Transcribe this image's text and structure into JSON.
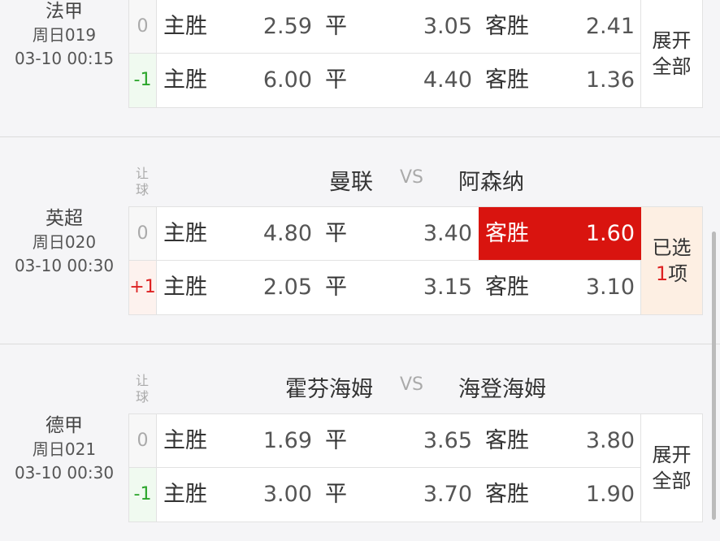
{
  "labels": {
    "rangqiu_1": "让",
    "rangqiu_2": "球",
    "vs": "VS",
    "home_win": "主胜",
    "draw": "平",
    "away_win": "客胜"
  },
  "matches": [
    {
      "league": "法甲",
      "number": "周日019",
      "time": "03-10 00:15",
      "home": "",
      "away": "",
      "rows": [
        {
          "handicap": "0",
          "home": "2.59",
          "draw": "3.05",
          "away": "2.41"
        },
        {
          "handicap": "-1",
          "home": "6.00",
          "draw": "4.40",
          "away": "1.36"
        }
      ],
      "option": {
        "line1": "展开",
        "line2": "全部"
      }
    },
    {
      "league": "英超",
      "number": "周日020",
      "time": "03-10 00:30",
      "home": "曼联",
      "away": "阿森纳",
      "rows": [
        {
          "handicap": "0",
          "home": "4.80",
          "draw": "3.40",
          "away": "1.60",
          "selected": "away"
        },
        {
          "handicap": "+1",
          "home": "2.05",
          "draw": "3.15",
          "away": "3.10"
        }
      ],
      "option": {
        "pre": "已选",
        "count": "1",
        "post": "项"
      }
    },
    {
      "league": "德甲",
      "number": "周日021",
      "time": "03-10 00:30",
      "home": "霍芬海姆",
      "away": "海登海姆",
      "rows": [
        {
          "handicap": "0",
          "home": "1.69",
          "draw": "3.65",
          "away": "3.80"
        },
        {
          "handicap": "-1",
          "home": "3.00",
          "draw": "3.70",
          "away": "1.90"
        }
      ],
      "option": {
        "line1": "展开",
        "line2": "全部"
      }
    }
  ],
  "colors": {
    "selected": "#d9140f",
    "negative_handicap": "#2aa52a",
    "positive_handicap": "#dd2222"
  }
}
